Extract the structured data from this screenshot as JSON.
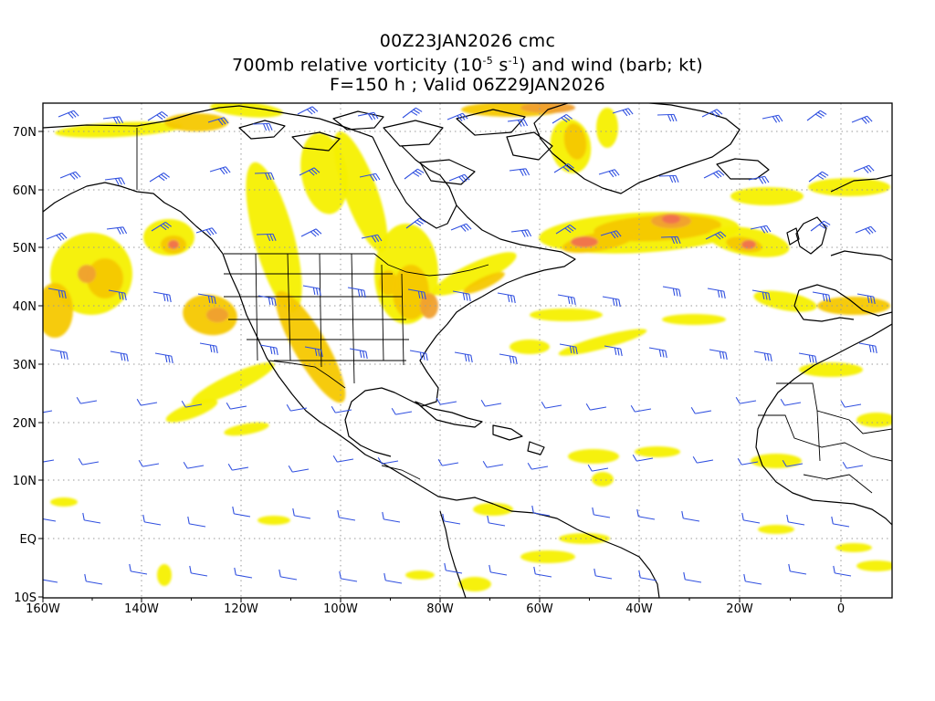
{
  "title": {
    "line1": "00Z23JAN2026 cmc",
    "line2_prefix": "700mb relative vorticity (10",
    "line2_exp1": "-5",
    "line2_mid": " s",
    "line2_exp2": "-1",
    "line2_suffix": ") and wind (barb; kt)",
    "line3": "F=150 h ; Valid 06Z29JAN2026"
  },
  "axes": {
    "lon_ticks": [
      "160W",
      "140W",
      "120W",
      "100W",
      "80W",
      "60W",
      "40W",
      "20W",
      "0"
    ],
    "lat_ticks": [
      "70N",
      "60N",
      "50N",
      "40N",
      "30N",
      "20N",
      "10N",
      "EQ",
      "10S"
    ]
  },
  "colors": {
    "vort_light": "#f5f000",
    "vort_mid": "#f5c800",
    "vort_orange": "#f0a030",
    "vort_strong": "#f07050",
    "vort_max": "#e02828",
    "barb": "#3050e0",
    "coast": "#000000",
    "grid": "#999999"
  }
}
